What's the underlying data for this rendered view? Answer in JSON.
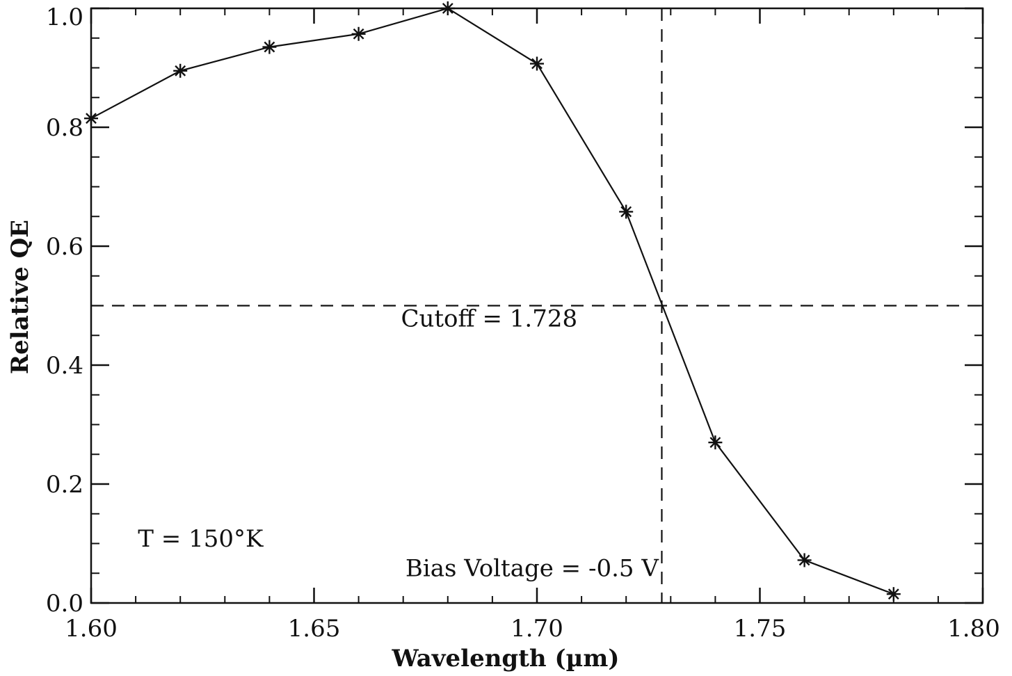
{
  "chart_data": {
    "type": "line",
    "xlabel": "Wavelength (µm)",
    "ylabel": "Relative QE",
    "xlim": [
      1.6,
      1.8
    ],
    "ylim": [
      0.0,
      1.0
    ],
    "x_ticks": [
      "1.60",
      "1.65",
      "1.70",
      "1.75",
      "1.80"
    ],
    "y_ticks": [
      "0.0",
      "0.2",
      "0.4",
      "0.6",
      "0.8",
      "1.0"
    ],
    "x_tick_values": [
      1.6,
      1.65,
      1.7,
      1.75,
      1.8
    ],
    "y_tick_values": [
      0.0,
      0.2,
      0.4,
      0.6,
      0.8,
      1.0
    ],
    "x_minor_step": 0.01,
    "y_minor_step": 0.05,
    "grid": false,
    "series": [
      {
        "marker": "asterisk",
        "color": "#111111",
        "x": [
          1.6,
          1.62,
          1.64,
          1.66,
          1.68,
          1.7,
          1.72,
          1.74,
          1.76,
          1.78
        ],
        "y": [
          0.815,
          0.895,
          0.935,
          0.957,
          1.0,
          0.907,
          0.658,
          0.27,
          0.072,
          0.015
        ]
      }
    ],
    "reference_lines": [
      {
        "orientation": "horizontal",
        "value": 0.5,
        "style": "dashed"
      },
      {
        "orientation": "vertical",
        "value": 1.728,
        "style": "dashed"
      }
    ],
    "annotations": [
      {
        "id": "cutoff",
        "text": "Cutoff = 1.728",
        "x": 1.6695,
        "y": 0.465
      },
      {
        "id": "temperature",
        "text": "T = 150°K",
        "x": 1.6105,
        "y": 0.095
      },
      {
        "id": "bias",
        "text": "Bias Voltage = -0.5 V",
        "x": 1.6705,
        "y": 0.045
      }
    ]
  }
}
